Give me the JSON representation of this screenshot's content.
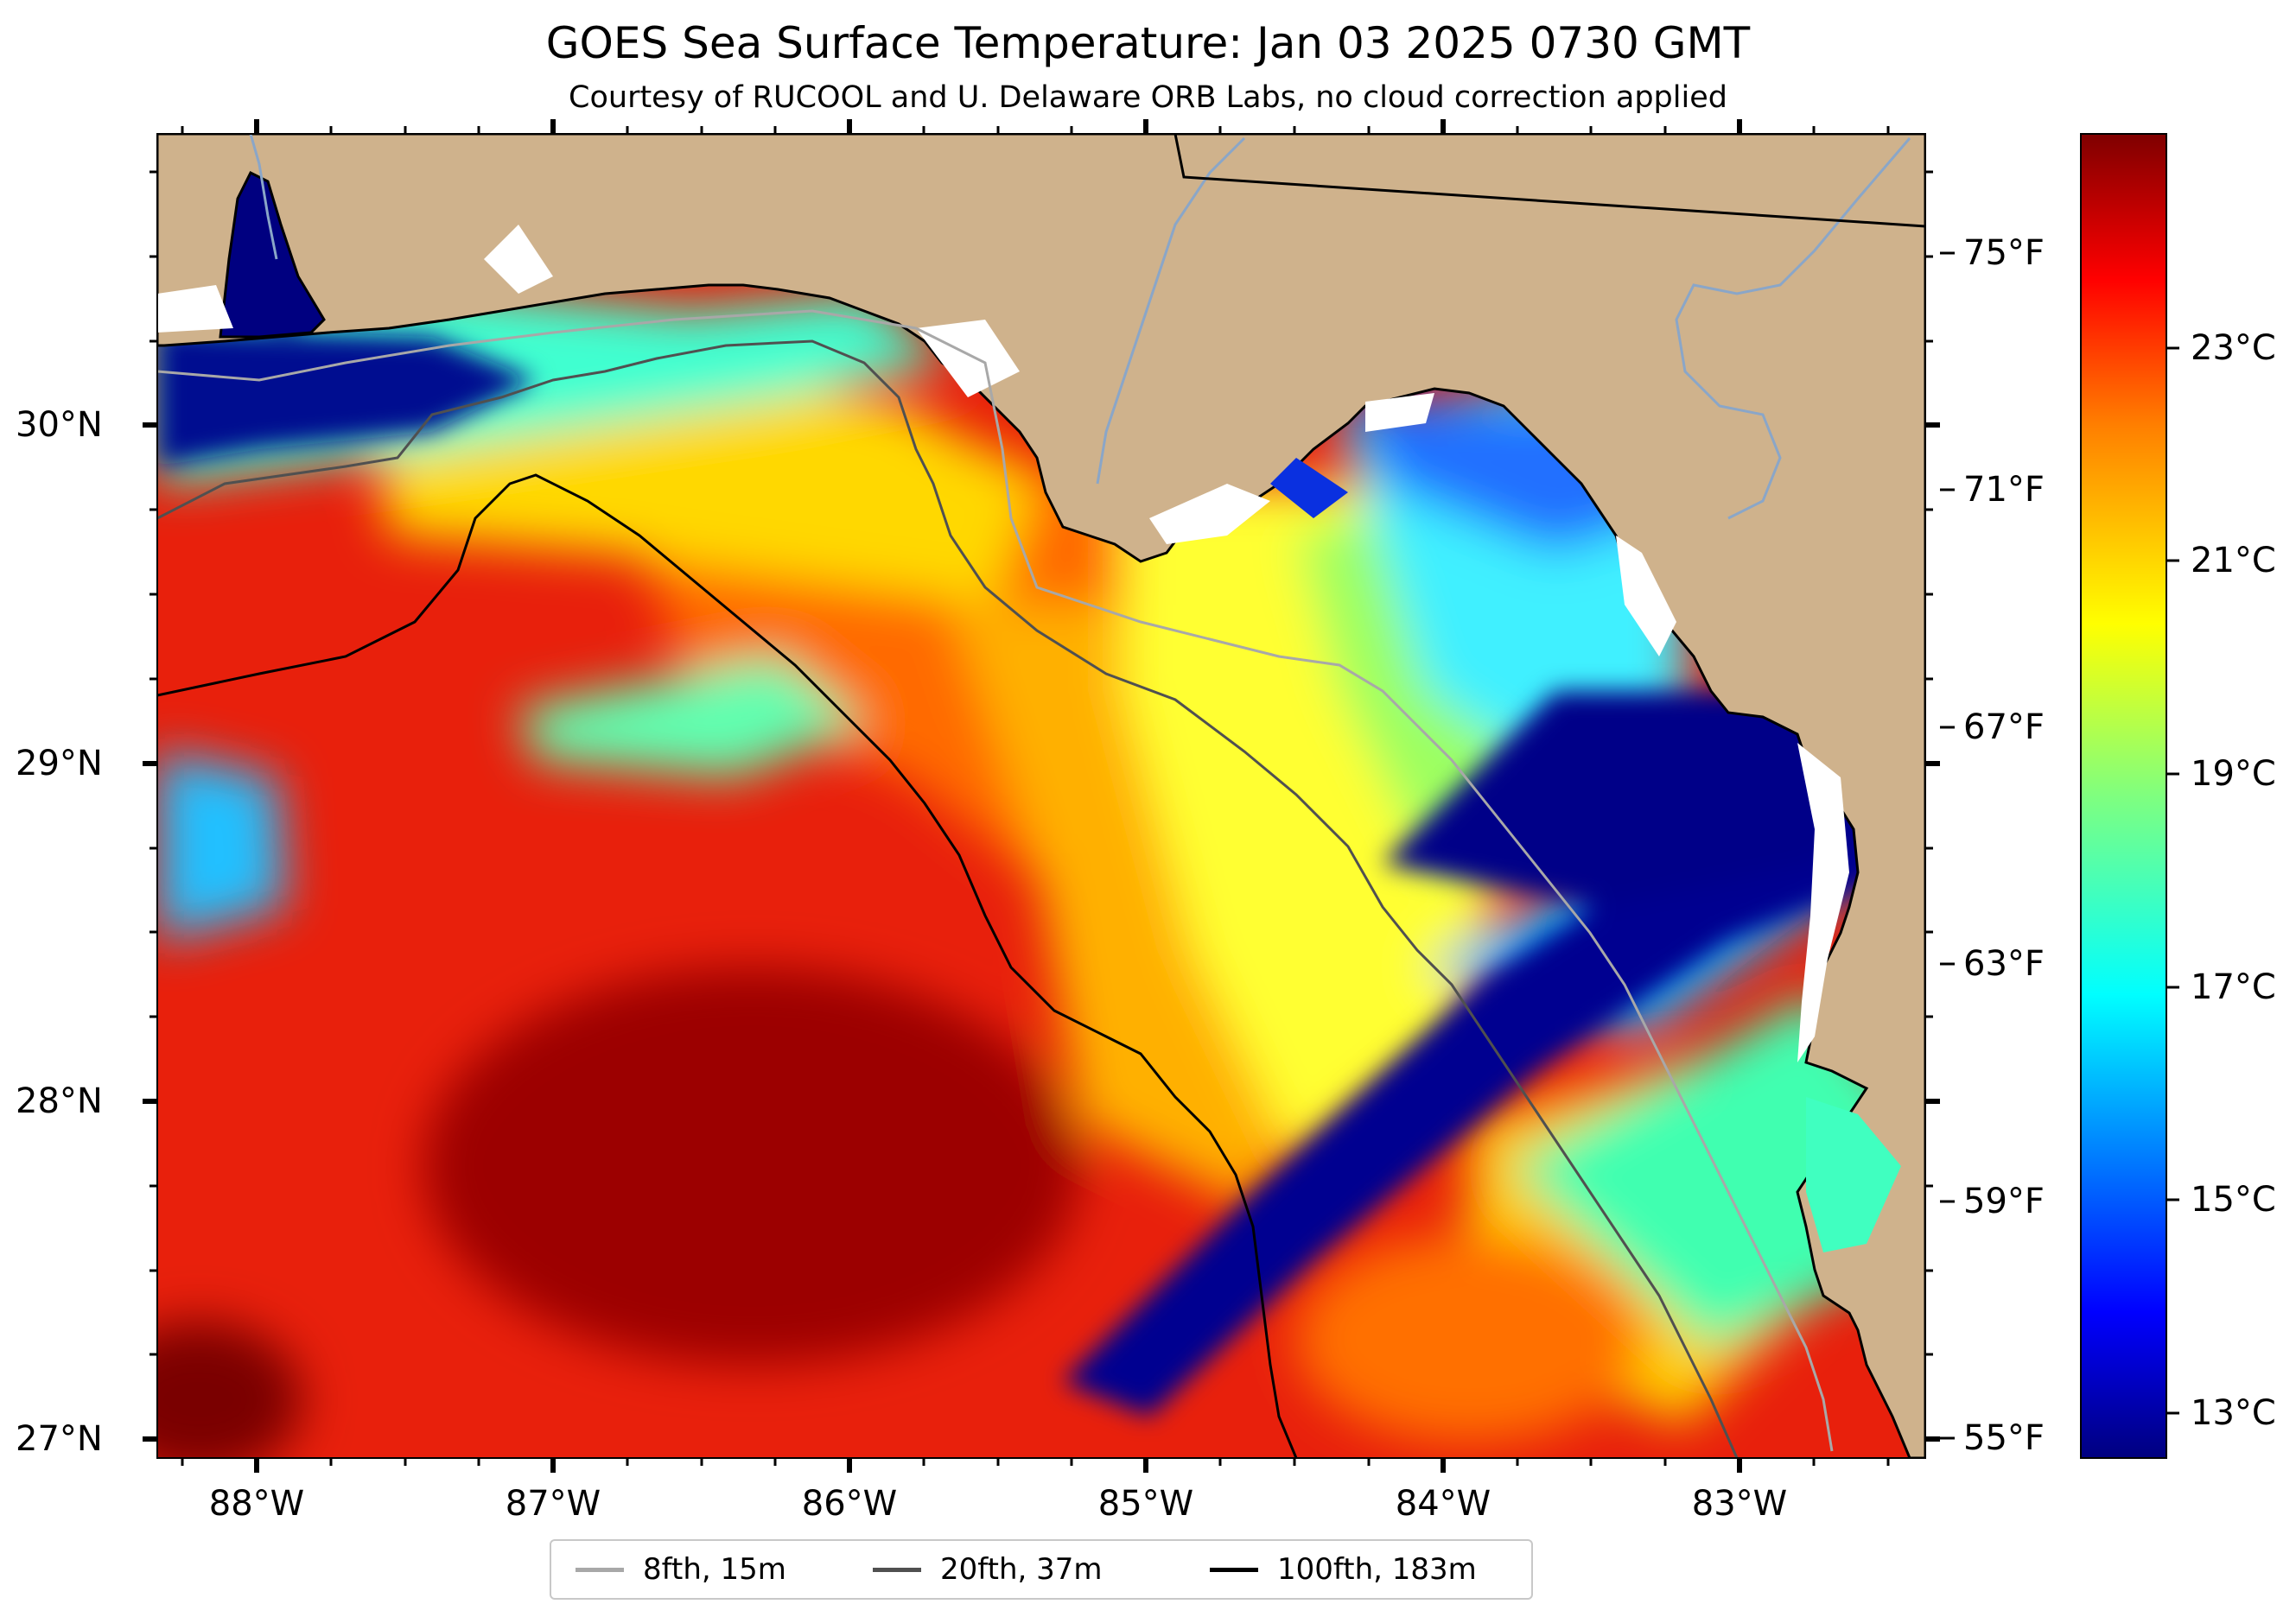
{
  "header": {
    "title": "GOES Sea Surface Temperature: Jan 03 2025 0730 GMT",
    "subtitle": "Courtesy of RUCOOL and U. Delaware ORB Labs, no cloud correction applied"
  },
  "axes": {
    "lat_labels": [
      "30°N",
      "29°N",
      "28°N",
      "27°N"
    ],
    "lon_labels": [
      "88°W",
      "87°W",
      "86°W",
      "85°W",
      "84°W",
      "83°W"
    ],
    "fahrenheit_labels": [
      "75°F",
      "71°F",
      "67°F",
      "63°F",
      "59°F",
      "55°F"
    ],
    "celsius_labels": [
      "23°C",
      "21°C",
      "19°C",
      "17°C",
      "15°C",
      "13°C"
    ]
  },
  "colorbar": {
    "colormap": "jet",
    "colors": [
      "#00007f",
      "#0000ff",
      "#007fff",
      "#00ffff",
      "#7fff7f",
      "#ffff00",
      "#ff7f00",
      "#ff0000",
      "#7f0000"
    ]
  },
  "map": {
    "land_color": "#cfb28c",
    "river_color": "#8aa6c8",
    "no_data_color": "#ffffff"
  },
  "legend": {
    "items": [
      {
        "label": "8fth, 15m",
        "color": "#a8a8a8"
      },
      {
        "label": "20fth, 37m",
        "color": "#505050"
      },
      {
        "label": "100fth, 183m",
        "color": "#000000"
      }
    ]
  }
}
